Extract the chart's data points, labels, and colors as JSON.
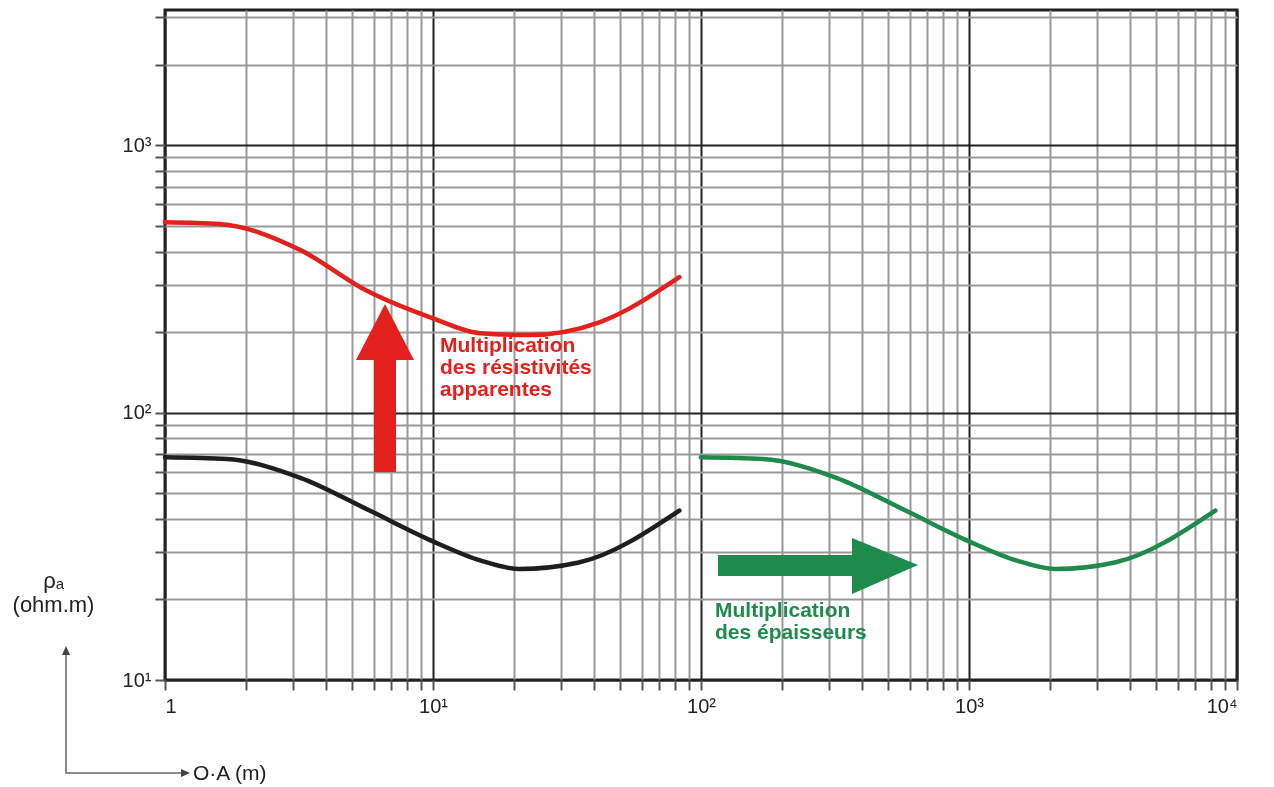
{
  "chart_data": {
    "type": "line",
    "xlabel": "O·A (m)",
    "ylabel": "ρₐ (ohm.m)",
    "log": "xy",
    "grid": true,
    "marker": "none",
    "line_style": "solid",
    "xlim": [
      1,
      10000
    ],
    "ylim": [
      10,
      3200
    ],
    "xticks": [
      1,
      {
        "value": 2,
        "label": null
      },
      {
        "value": 3,
        "label": null
      },
      {
        "value": 4,
        "label": null
      },
      {
        "value": 5,
        "label": null
      },
      {
        "value": 6,
        "label": null
      },
      {
        "value": 7,
        "label": null
      },
      {
        "value": 8,
        "label": null
      },
      {
        "value": 9,
        "label": null
      },
      {
        "value": 10,
        "label": "10¹"
      },
      {
        "value": 20,
        "label": null
      },
      {
        "value": 30,
        "label": null
      },
      {
        "value": 40,
        "label": null
      },
      {
        "value": 50,
        "label": null
      },
      {
        "value": 60,
        "label": null
      },
      {
        "value": 70,
        "label": null
      },
      {
        "value": 80,
        "label": null
      },
      {
        "value": 90,
        "label": null
      },
      {
        "value": 100,
        "label": "10²"
      },
      {
        "value": 200,
        "label": null
      },
      {
        "value": 300,
        "label": null
      },
      {
        "value": 400,
        "label": null
      },
      {
        "value": 500,
        "label": null
      },
      {
        "value": 600,
        "label": null
      },
      {
        "value": 700,
        "label": null
      },
      {
        "value": 800,
        "label": null
      },
      {
        "value": 900,
        "label": null
      },
      {
        "value": 1000,
        "label": "10³"
      },
      {
        "value": 2000,
        "label": null
      },
      {
        "value": 3000,
        "label": null
      },
      {
        "value": 4000,
        "label": null
      },
      {
        "value": 5000,
        "label": null
      },
      {
        "value": 6000,
        "label": null
      },
      {
        "value": 7000,
        "label": null
      },
      {
        "value": 8000,
        "label": null
      },
      {
        "value": 9000,
        "label": null
      },
      {
        "value": 10000,
        "label": "10⁴"
      }
    ],
    "yticks": [
      {
        "value": 10,
        "label": "10¹"
      },
      {
        "value": 20,
        "label": null
      },
      {
        "value": 30,
        "label": null
      },
      {
        "value": 40,
        "label": null
      },
      {
        "value": 50,
        "label": null
      },
      {
        "value": 60,
        "label": null
      },
      {
        "value": 70,
        "label": null
      },
      {
        "value": 80,
        "label": null
      },
      {
        "value": 90,
        "label": null
      },
      {
        "value": 100,
        "label": "10²"
      },
      {
        "value": 200,
        "label": null
      },
      {
        "value": 300,
        "label": null
      },
      {
        "value": 400,
        "label": null
      },
      {
        "value": 500,
        "label": null
      },
      {
        "value": 600,
        "label": null
      },
      {
        "value": 700,
        "label": null
      },
      {
        "value": 800,
        "label": null
      },
      {
        "value": 900,
        "label": null
      },
      {
        "value": 1000,
        "label": "10³"
      },
      {
        "value": 2000,
        "label": null
      },
      {
        "value": 3000,
        "label": null
      }
    ],
    "series": [
      {
        "color": "#e3201b",
        "x": [
          1,
          1.6,
          3.2,
          5.6,
          10,
          15,
          23,
          42,
          83
        ],
        "values": [
          515,
          507,
          405,
          287,
          225,
          198,
          195,
          218,
          321
        ]
      },
      {
        "color": "#1e1e1e",
        "x": [
          1,
          1.7,
          3.2,
          5.8,
          10,
          15,
          21,
          35,
          83
        ],
        "values": [
          68,
          67,
          57,
          43,
          33,
          28,
          26,
          27.5,
          43
        ]
      },
      {
        "color": "#1e8a4c",
        "x": [
          100,
          170,
          320,
          580,
          1000,
          1500,
          2100,
          3500,
          8300
        ],
        "values": [
          68,
          67,
          57,
          43,
          33,
          28,
          26,
          27.5,
          43
        ]
      }
    ],
    "annotations": [
      "Multiplication\ndes résistivités\napparentes",
      "Multiplication\ndes épaisseurs"
    ]
  }
}
